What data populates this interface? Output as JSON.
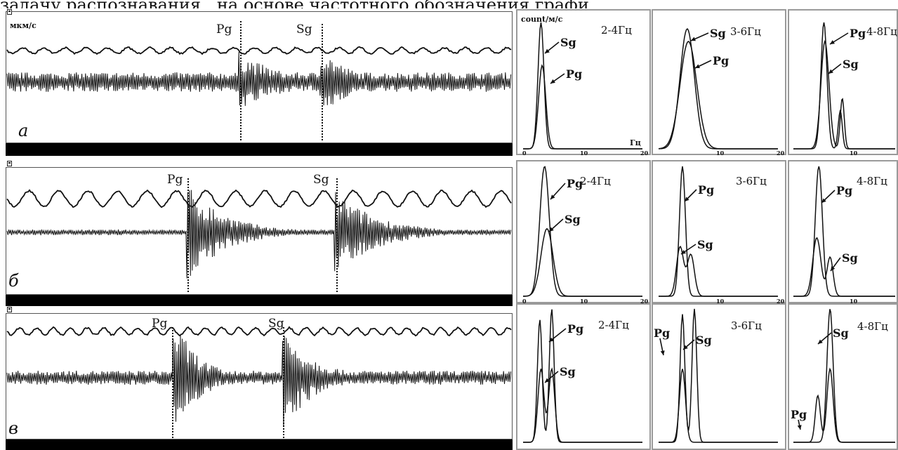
{
  "caption_fragment": "задачу распознавания.. на основе частотного обозначения графи",
  "amplitude_unit": "мкм/с",
  "count_unit": "count/м/с",
  "freq_unit": "Гц",
  "freq_ticks": [
    "0",
    "10",
    "20"
  ],
  "panels": [
    {
      "letter": "а",
      "p_label": "Pg",
      "s_label": "Sg",
      "spectra": [
        {
          "band": "2-4Гц",
          "lbl1": "Sg",
          "lbl2": "Pg"
        },
        {
          "band": "3-6Гц",
          "lbl1": "Sg",
          "lbl2": "Pg"
        },
        {
          "band": "4-8Гц",
          "lbl1": "Pg",
          "lbl2": "Sg"
        }
      ]
    },
    {
      "letter": "б",
      "p_label": "Pg",
      "s_label": "Sg",
      "spectra": [
        {
          "band": "2-4Гц",
          "lbl1": "Pg",
          "lbl2": "Sg"
        },
        {
          "band": "3-6Гц",
          "lbl1": "Pg",
          "lbl2": "Sg"
        },
        {
          "band": "4-8Гц",
          "lbl1": "Pg",
          "lbl2": "Sg"
        }
      ]
    },
    {
      "letter": "в",
      "p_label": "Pg",
      "s_label": "Sg",
      "spectra": [
        {
          "band": "2-4Гц",
          "lbl1": "Pg",
          "lbl2": "Sg"
        },
        {
          "band": "3-6Гц",
          "lbl1": "Pg",
          "lbl2": "Sg"
        },
        {
          "band": "4-8Гц",
          "lbl1": "Sg",
          "lbl2": "Pg"
        }
      ]
    }
  ]
}
